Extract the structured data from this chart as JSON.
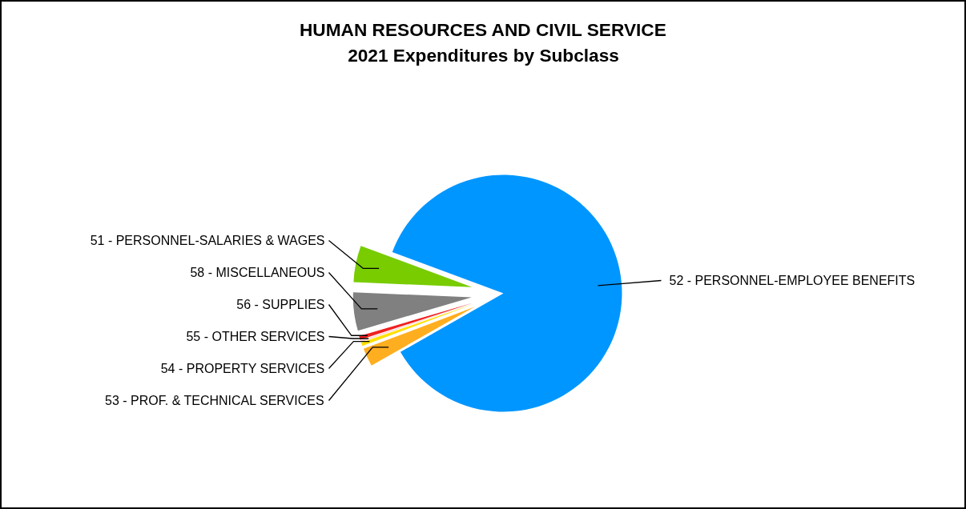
{
  "chart_data": {
    "type": "pie",
    "title": "HUMAN RESOURCES AND CIVIL SERVICE",
    "subtitle": "2021 Expenditures by Subclass",
    "categories": [
      "52 - PERSONNEL-EMPLOYEE BENEFITS",
      "51 - PERSONNEL-SALARIES & WAGES",
      "58 - MISCELLANEOUS",
      "56 - SUPPLIES",
      "55 - OTHER SERVICES",
      "54 - PROPERTY SERVICES",
      "53 - PROF. & TECHNICAL SERVICES"
    ],
    "values": [
      86.1,
      5.0,
      5.2,
      0.5,
      0.2,
      0.5,
      2.5
    ],
    "colors": [
      "#0096ff",
      "#78cc00",
      "#808080",
      "#f02020",
      "#ffd0d0",
      "#ffe000",
      "#ffae1f"
    ]
  }
}
